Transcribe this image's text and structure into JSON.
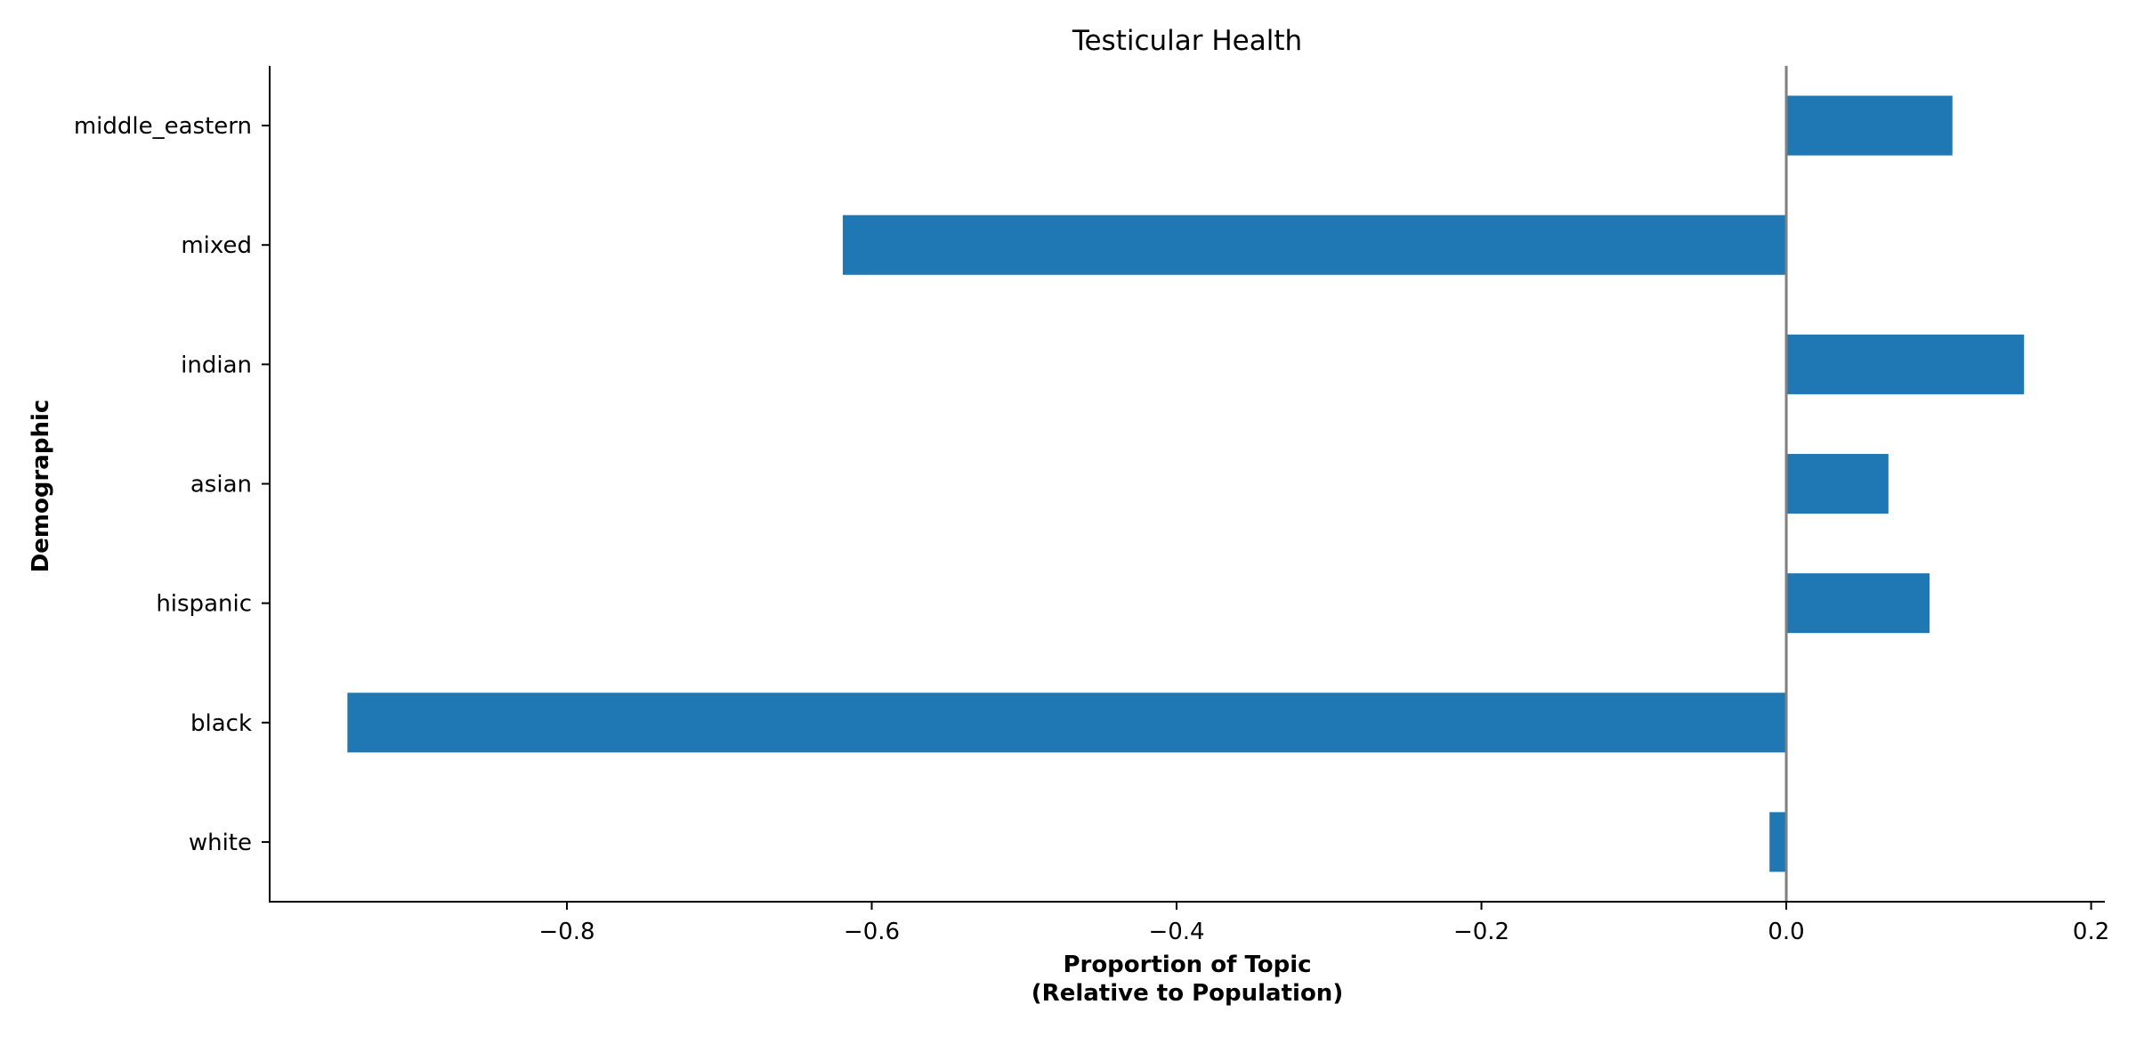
{
  "chart_data": {
    "type": "bar",
    "orientation": "horizontal",
    "title": "Testicular Health",
    "xlabel_line1": "Proportion of Topic",
    "xlabel_line2": "(Relative to Population)",
    "ylabel": "Demographic",
    "categories": [
      "white",
      "black",
      "hispanic",
      "asian",
      "indian",
      "mixed",
      "middle_eastern"
    ],
    "values": [
      -0.011,
      -0.944,
      0.094,
      0.067,
      0.156,
      -0.619,
      0.109
    ],
    "xlim": [
      -0.995,
      0.209
    ],
    "xticks": [
      -0.8,
      -0.6,
      -0.4,
      -0.2,
      0.0,
      0.2
    ],
    "xtick_labels": [
      "−0.8",
      "−0.6",
      "−0.4",
      "−0.2",
      "0.0",
      "0.2"
    ],
    "reference_line_x": 0.0,
    "bar_color": "#1f77b4",
    "reference_line_color": "#808080",
    "grid": false,
    "legend": "none"
  }
}
